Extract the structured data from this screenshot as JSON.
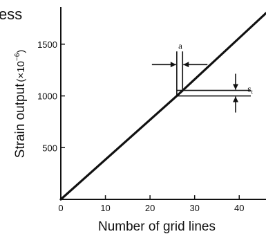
{
  "chart_data": {
    "type": "line",
    "title": "ess",
    "xlabel": "Number of grid lines",
    "ylabel_main": "Strain output",
    "ylabel_unit": "(×10",
    "ylabel_exp": "−6",
    "ylabel_close": ")",
    "xlim": [
      0,
      46
    ],
    "ylim": [
      0,
      1860
    ],
    "x_ticks": [
      0,
      10,
      20,
      30,
      40
    ],
    "x_tick_labels": [
      "0",
      "10",
      "20",
      "30",
      "40"
    ],
    "y_ticks": [
      500,
      1000,
      1500
    ],
    "y_tick_labels": [
      "500",
      "1000",
      "1500"
    ],
    "series": [
      {
        "x": [
          0,
          26,
          46
        ],
        "y": [
          0,
          1000,
          1800
        ]
      }
    ],
    "annotations": {
      "a_label": "a",
      "e_label": "ε",
      "e_sub": "t",
      "step_x": 26,
      "step_y": 1000,
      "step_top_y": 1430,
      "step_width_x": 1.3
    },
    "colors": {
      "ink": "#111111",
      "background": "#ffffff"
    }
  }
}
